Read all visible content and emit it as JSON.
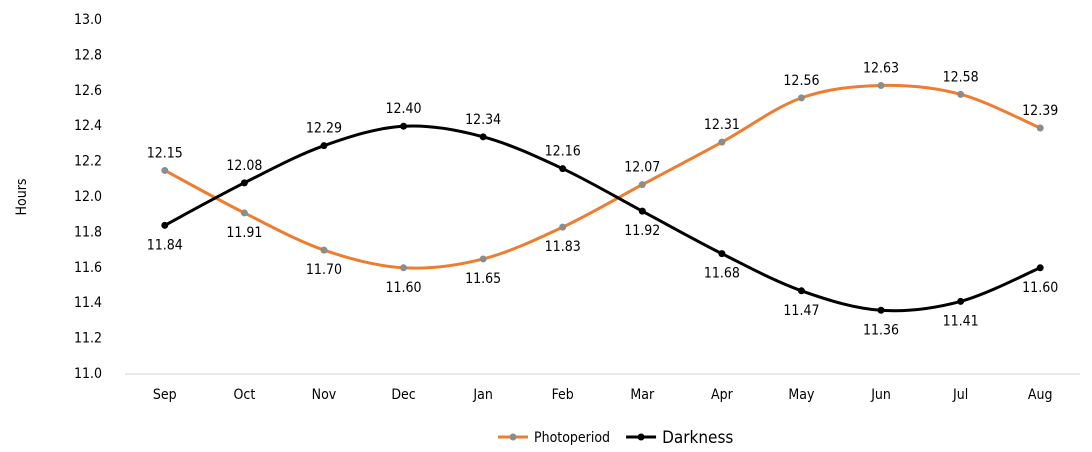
{
  "chart_data": {
    "type": "line",
    "y_label": "Hours",
    "categories": [
      "Sep",
      "Oct",
      "Nov",
      "Dec",
      "Jan",
      "Feb",
      "Mar",
      "Apr",
      "May",
      "Jun",
      "Jul",
      "Aug"
    ],
    "series": [
      {
        "name": "Photoperiod",
        "color": "#ed7d31",
        "marker_color": "#8c8c8c",
        "values": [
          12.15,
          11.91,
          11.7,
          11.6,
          11.65,
          11.83,
          12.07,
          12.31,
          12.56,
          12.63,
          12.58,
          12.39
        ],
        "value_labels": [
          "12.15",
          "11.91",
          "11.70",
          "11.60",
          "11.65",
          "11.83",
          "12.07",
          "12.31",
          "12.56",
          "12.63",
          "12.58",
          "12.39"
        ]
      },
      {
        "name": "Darkness",
        "color": "#000000",
        "marker_color": "#000000",
        "values": [
          11.84,
          12.08,
          12.29,
          12.4,
          12.34,
          12.16,
          11.92,
          11.68,
          11.47,
          11.36,
          11.41,
          11.6
        ],
        "value_labels": [
          "11.84",
          "12.08",
          "12.29",
          "12.40",
          "12.34",
          "12.16",
          "11.92",
          "11.68",
          "11.47",
          "11.36",
          "11.41",
          "11.60"
        ]
      }
    ],
    "ylim": [
      11.0,
      13.0
    ],
    "yticks": [
      {
        "value": 11.0,
        "label": "11.0"
      },
      11.2,
      11.4,
      11.6,
      11.8,
      {
        "value": 12.0,
        "label": "12.0"
      },
      12.2,
      12.4,
      12.6,
      12.8,
      {
        "value": 13.0,
        "label": "13.0"
      }
    ],
    "grid": false,
    "legend": "bottom"
  }
}
